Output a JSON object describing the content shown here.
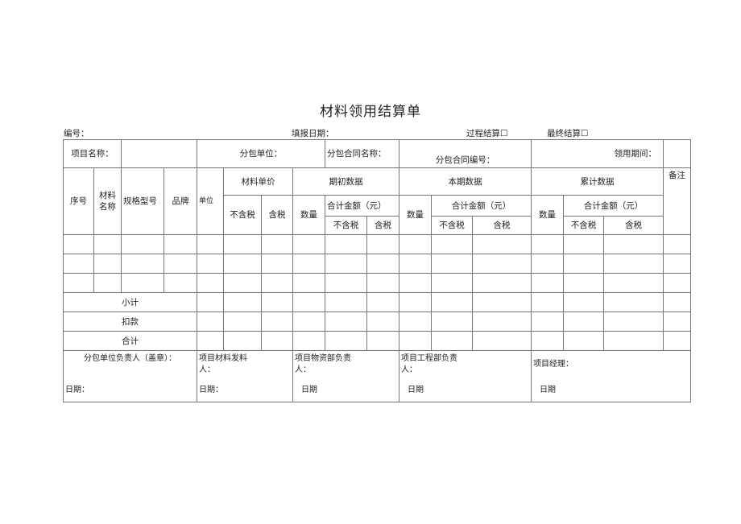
{
  "title": "材料领用结算单",
  "meta": {
    "number_label": "编号：",
    "report_date_label": "填报日期：",
    "process_settlement": "过程结算☐",
    "final_settlement": "最终结算☐"
  },
  "info": {
    "project_name": "项目名称：",
    "subcontractor": "分包单位：",
    "contract_name": "分包合同名称：",
    "contract_no": "分包合同编号：",
    "period": "领用期间："
  },
  "headers": {
    "seq": "序号",
    "material_name": "材料名称",
    "spec": "规格型号",
    "brand": "品牌",
    "unit": "单位",
    "unit_price": "材料单价",
    "opening": "期初数据",
    "current": "本期数据",
    "cumulative": "累计数据",
    "remark": "备注",
    "excl_tax": "不含税",
    "incl_tax": "含税",
    "quantity": "数量",
    "total_amount": "合计金额（元）"
  },
  "summary": {
    "subtotal": "小计",
    "deduction": "扣款",
    "total": "合计"
  },
  "signatures": [
    {
      "label": "分包单位负责人（盖章）：",
      "date": "日期："
    },
    {
      "label": "项目材料发料人：",
      "date": "日期："
    },
    {
      "label": "项目物资部负责人：",
      "date": "日期"
    },
    {
      "label": "项目工程部负责人：",
      "date": "日期"
    },
    {
      "label": "项目经理：",
      "date": "日期"
    }
  ]
}
